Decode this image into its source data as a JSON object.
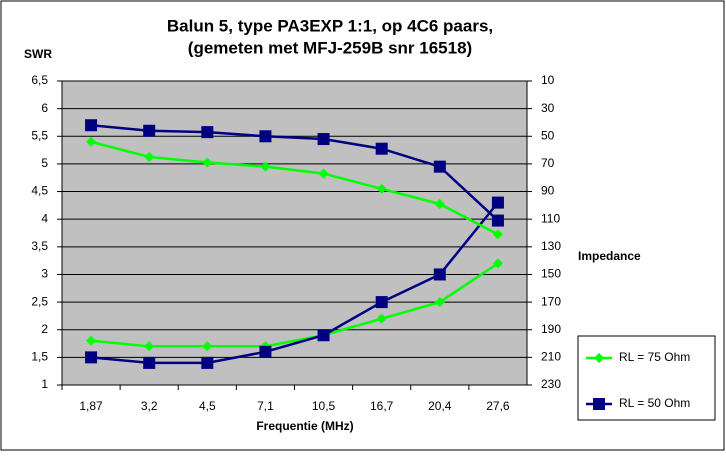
{
  "chart_data": {
    "type": "line",
    "title": [
      "Balun 5, type PA3EXP 1:1, op 4C6 paars,",
      "(gemeten met MFJ-259B snr 16518)"
    ],
    "x_label": "Frequentie (MHz)",
    "y_label": "SWR",
    "y2_label": "Impedance",
    "categories": [
      "1,87",
      "3,2",
      "4,5",
      "7,1",
      "10,5",
      "16,7",
      "20,4",
      "27,6"
    ],
    "series": [
      {
        "name": "RL = 75 Ohm",
        "color": "#00ff00",
        "marker": "diamond",
        "values": [
          1.8,
          1.7,
          1.7,
          1.7,
          1.9,
          2.2,
          2.5,
          3.2
        ]
      },
      {
        "name": "RL = 50 Ohm",
        "color": "#000080",
        "marker": "square",
        "values": [
          1.5,
          1.4,
          1.4,
          1.6,
          1.9,
          2.5,
          3.0,
          4.3
        ]
      },
      {
        "color": "#00ff00",
        "marker": "diamond",
        "axis": "y2",
        "values": [
          54,
          65,
          69,
          72,
          77,
          88,
          99,
          121
        ]
      },
      {
        "color": "#000080",
        "marker": "square",
        "axis": "y2",
        "values": [
          42,
          46,
          47,
          50,
          52,
          59,
          72,
          111
        ]
      }
    ],
    "ylim": [
      1,
      6.5
    ],
    "yticks": [
      1,
      {
        "value": 1.5,
        "label": "1,5"
      },
      2,
      {
        "value": 2.5,
        "label": "2,5"
      },
      3,
      {
        "value": 3.5,
        "label": "3,5"
      },
      4,
      {
        "value": 4.5,
        "label": "4,5"
      },
      5,
      {
        "value": 5.5,
        "label": "5,5"
      },
      6,
      {
        "value": 6.5,
        "label": "6,5"
      }
    ],
    "y2lim": [
      230,
      10
    ],
    "y2_reversed": true,
    "y2ticks": [
      10,
      30,
      50,
      70,
      90,
      110,
      130,
      150,
      170,
      190,
      210,
      230
    ],
    "grid": true,
    "legend_position": "right",
    "plot_background": "#c0c0c0"
  }
}
